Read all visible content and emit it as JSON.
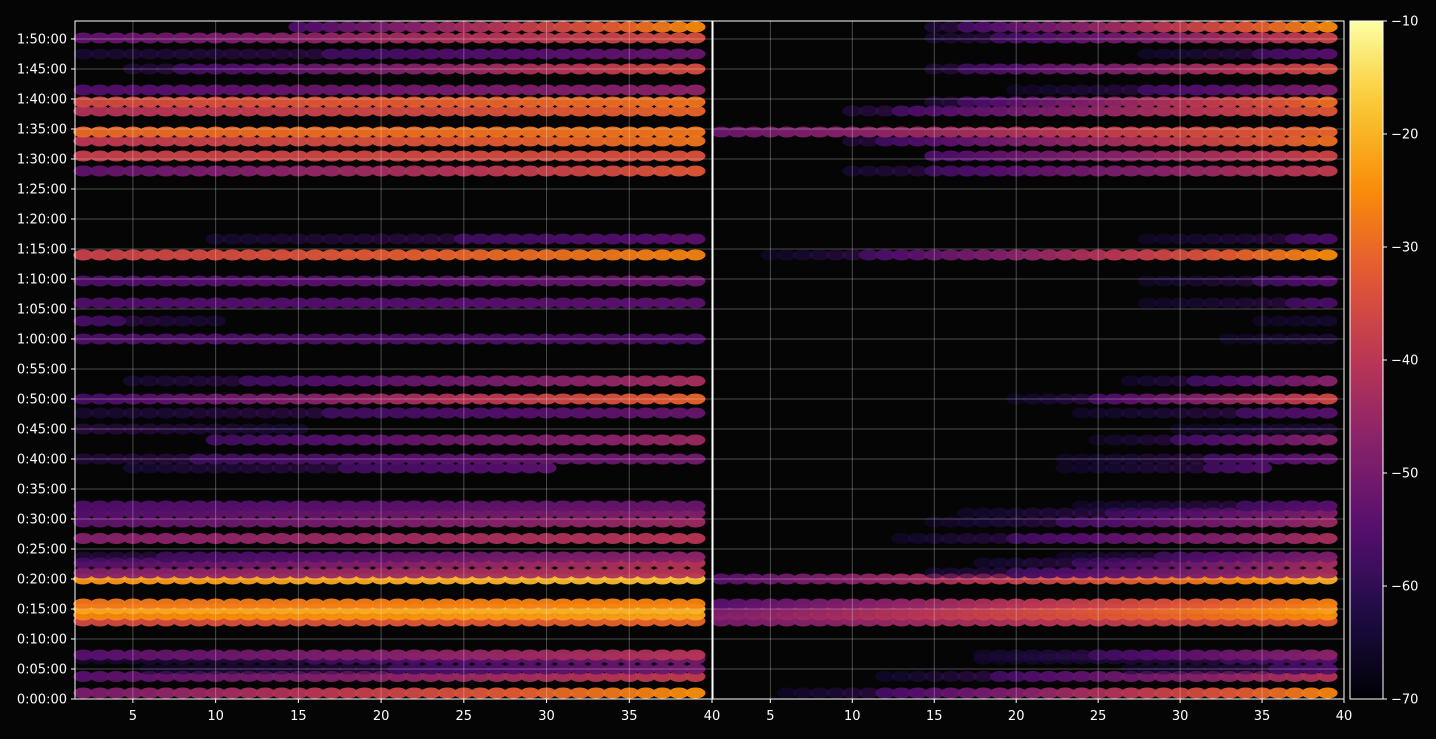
{
  "chart_data": {
    "type": "heatmap",
    "colormap": "inferno",
    "background": "#050505",
    "panels": [
      {
        "x_range": [
          1.5,
          40
        ],
        "x_ticks": [
          "5",
          "10",
          "15",
          "20",
          "25",
          "30",
          "35",
          "40"
        ],
        "x_tick_values": [
          5,
          10,
          15,
          20,
          25,
          30,
          35,
          40
        ]
      },
      {
        "x_range": [
          1.5,
          40
        ],
        "x_ticks": [
          "5",
          "10",
          "15",
          "20",
          "25",
          "30",
          "35",
          "40"
        ],
        "x_tick_values": [
          5,
          10,
          15,
          20,
          25,
          30,
          35,
          40
        ]
      }
    ],
    "y_range_seconds": [
      0,
      6780
    ],
    "y_ticks": [
      "0:00:00",
      "0:05:00",
      "0:10:00",
      "0:15:00",
      "0:20:00",
      "0:25:00",
      "0:30:00",
      "0:35:00",
      "0:40:00",
      "0:45:00",
      "0:50:00",
      "0:55:00",
      "1:00:00",
      "1:05:00",
      "1:10:00",
      "1:15:00",
      "1:20:00",
      "1:25:00",
      "1:30:00",
      "1:35:00",
      "1:40:00",
      "1:45:00",
      "1:50:00"
    ],
    "y_tick_values": [
      0,
      300,
      600,
      900,
      1200,
      1500,
      1800,
      2100,
      2400,
      2700,
      3000,
      3300,
      3600,
      3900,
      4200,
      4500,
      4800,
      5100,
      5400,
      5700,
      6000,
      6300,
      6600
    ],
    "grid": true,
    "colorbar": {
      "range": [
        -70,
        -10
      ],
      "ticks": [
        "−10",
        "−20",
        "−30",
        "−40",
        "−50",
        "−60",
        "−70"
      ],
      "tick_values": [
        -10,
        -20,
        -30,
        -40,
        -50,
        -60,
        -70
      ]
    },
    "bands": [
      {
        "t": 60,
        "v": -32,
        "p1": [
          1,
          40,
          -50,
          -24
        ],
        "p2": [
          5,
          40,
          -65,
          -25
        ]
      },
      {
        "t": 225,
        "v": -45,
        "p1": [
          1,
          40,
          -55,
          -38
        ],
        "p2": [
          10,
          40,
          -65,
          -40
        ]
      },
      {
        "t": 300,
        "v": -58,
        "p1": [
          1,
          40,
          -66,
          -50
        ],
        "p2": [
          20,
          40,
          -68,
          -55
        ]
      },
      {
        "t": 400,
        "v": -55,
        "p1": [
          1,
          40,
          -63,
          -50
        ],
        "p2": [
          10,
          40,
          -67,
          -55
        ]
      },
      {
        "t": 440,
        "v": -45,
        "p1": [
          1,
          40,
          -55,
          -40
        ],
        "p2": [
          15,
          40,
          -66,
          -46
        ]
      },
      {
        "t": 780,
        "v": -32,
        "p1": [
          1,
          40,
          -36,
          -30
        ],
        "p2": [
          1,
          40,
          -50,
          -32
        ]
      },
      {
        "t": 840,
        "v": -28,
        "p1": [
          1,
          40,
          -26,
          -22
        ],
        "p2": [
          1,
          40,
          -48,
          -24
        ]
      },
      {
        "t": 900,
        "v": -22,
        "p1": [
          1,
          40,
          -22,
          -20
        ],
        "p2": [
          1,
          40,
          -50,
          -22
        ]
      },
      {
        "t": 950,
        "v": -32,
        "p1": [
          1,
          40,
          -28,
          -26
        ],
        "p2": [
          1,
          40,
          -55,
          -26
        ]
      },
      {
        "t": 1200,
        "v": -20,
        "p1": [
          1,
          40,
          -24,
          -18
        ],
        "p2": [
          1,
          40,
          -55,
          -20
        ]
      },
      {
        "t": 1260,
        "v": -40,
        "p1": [
          1,
          40,
          -48,
          -40
        ],
        "p2": [
          15,
          40,
          -62,
          -42
        ]
      },
      {
        "t": 1360,
        "v": -48,
        "p1": [
          1,
          40,
          -55,
          -40
        ],
        "p2": [
          15,
          40,
          -66,
          -42
        ]
      },
      {
        "t": 1420,
        "v": -52,
        "p1": [
          1,
          40,
          -60,
          -46
        ],
        "p2": [
          20,
          40,
          -66,
          -48
        ]
      },
      {
        "t": 1605,
        "v": -45,
        "p1": [
          1,
          40,
          -48,
          -40
        ],
        "p2": [
          10,
          40,
          -66,
          -42
        ]
      },
      {
        "t": 1770,
        "v": -50,
        "p1": [
          1,
          40,
          -54,
          -44
        ],
        "p2": [
          15,
          40,
          -64,
          -44
        ]
      },
      {
        "t": 1860,
        "v": -50,
        "p1": [
          1,
          40,
          -55,
          -48
        ],
        "p2": [
          15,
          40,
          -65,
          -48
        ]
      },
      {
        "t": 1930,
        "v": -58,
        "p1": [
          1,
          40,
          -56,
          -52
        ],
        "p2": [
          20,
          40,
          -66,
          -54
        ]
      },
      {
        "t": 2310,
        "v": -52,
        "p1": [
          5,
          30,
          -62,
          -54
        ],
        "p2": [
          20,
          35,
          -66,
          -56
        ]
      },
      {
        "t": 2400,
        "v": -52,
        "p1": [
          1,
          40,
          -60,
          -50
        ],
        "p2": [
          20,
          40,
          -66,
          -52
        ]
      },
      {
        "t": 2590,
        "v": -48,
        "p1": [
          10,
          40,
          -58,
          -44
        ],
        "p2": [
          25,
          40,
          -64,
          -46
        ]
      },
      {
        "t": 2700,
        "v": -58,
        "p1": [
          1,
          15,
          -58,
          -62
        ],
        "p2": [
          25,
          40,
          -66,
          -60
        ]
      },
      {
        "t": 2860,
        "v": -52,
        "p1": [
          1,
          40,
          -62,
          -52
        ],
        "p2": [
          20,
          40,
          -66,
          -54
        ]
      },
      {
        "t": 3000,
        "v": -48,
        "p1": [
          1,
          40,
          -58,
          -30
        ],
        "p2": [
          20,
          40,
          -64,
          -35
        ]
      },
      {
        "t": 3180,
        "v": -48,
        "p1": [
          5,
          40,
          -62,
          -42
        ],
        "p2": [
          25,
          40,
          -66,
          -46
        ]
      },
      {
        "t": 3960,
        "v": -54,
        "p1": [
          1,
          40,
          -56,
          -54
        ],
        "p2": [
          25,
          40,
          -66,
          -56
        ]
      },
      {
        "t": 3600,
        "v": -56,
        "p1": [
          1,
          40,
          -56,
          -56
        ],
        "p2": [
          25,
          40,
          -68,
          -60
        ]
      },
      {
        "t": 3780,
        "v": -58,
        "p1": [
          1,
          10,
          -56,
          -62
        ],
        "p2": [
          30,
          40,
          -66,
          -62
        ]
      },
      {
        "t": 4180,
        "v": -52,
        "p1": [
          1,
          40,
          -56,
          -52
        ],
        "p2": [
          25,
          40,
          -66,
          -54
        ]
      },
      {
        "t": 4440,
        "v": -40,
        "p1": [
          1,
          40,
          -38,
          -26
        ],
        "p2": [
          5,
          40,
          -64,
          -24
        ]
      },
      {
        "t": 4600,
        "v": -55,
        "p1": [
          10,
          40,
          -62,
          -54
        ],
        "p2": [
          25,
          40,
          -66,
          -56
        ]
      },
      {
        "t": 5280,
        "v": -46,
        "p1": [
          1,
          40,
          -54,
          -32
        ],
        "p2": [
          10,
          40,
          -62,
          -38
        ]
      },
      {
        "t": 5430,
        "v": -38,
        "p1": [
          1,
          40,
          -38,
          -34
        ],
        "p2": [
          15,
          40,
          -56,
          -36
        ]
      },
      {
        "t": 5580,
        "v": -34,
        "p1": [
          1,
          40,
          -40,
          -28
        ],
        "p2": [
          10,
          40,
          -60,
          -28
        ]
      },
      {
        "t": 5670,
        "v": -30,
        "p1": [
          1,
          40,
          -30,
          -28
        ],
        "p2": [
          1,
          40,
          -52,
          -30
        ]
      },
      {
        "t": 5880,
        "v": -40,
        "p1": [
          1,
          40,
          -42,
          -30
        ],
        "p2": [
          10,
          40,
          -60,
          -32
        ]
      },
      {
        "t": 5970,
        "v": -30,
        "p1": [
          1,
          40,
          -36,
          -28
        ],
        "p2": [
          15,
          40,
          -60,
          -28
        ]
      },
      {
        "t": 6090,
        "v": -48,
        "p1": [
          1,
          40,
          -56,
          -46
        ],
        "p2": [
          20,
          40,
          -64,
          -48
        ]
      },
      {
        "t": 6300,
        "v": -40,
        "p1": [
          5,
          40,
          -60,
          -34
        ],
        "p2": [
          15,
          40,
          -60,
          -34
        ]
      },
      {
        "t": 6450,
        "v": -54,
        "p1": [
          1,
          40,
          -62,
          -52
        ],
        "p2": [
          25,
          40,
          -66,
          -54
        ]
      },
      {
        "t": 6610,
        "v": -46,
        "p1": [
          1,
          40,
          -54,
          -34
        ],
        "p2": [
          15,
          40,
          -62,
          -36
        ]
      },
      {
        "t": 6720,
        "v": -48,
        "p1": [
          15,
          40,
          -56,
          -24
        ],
        "p2": [
          15,
          40,
          -60,
          -24
        ]
      }
    ]
  }
}
